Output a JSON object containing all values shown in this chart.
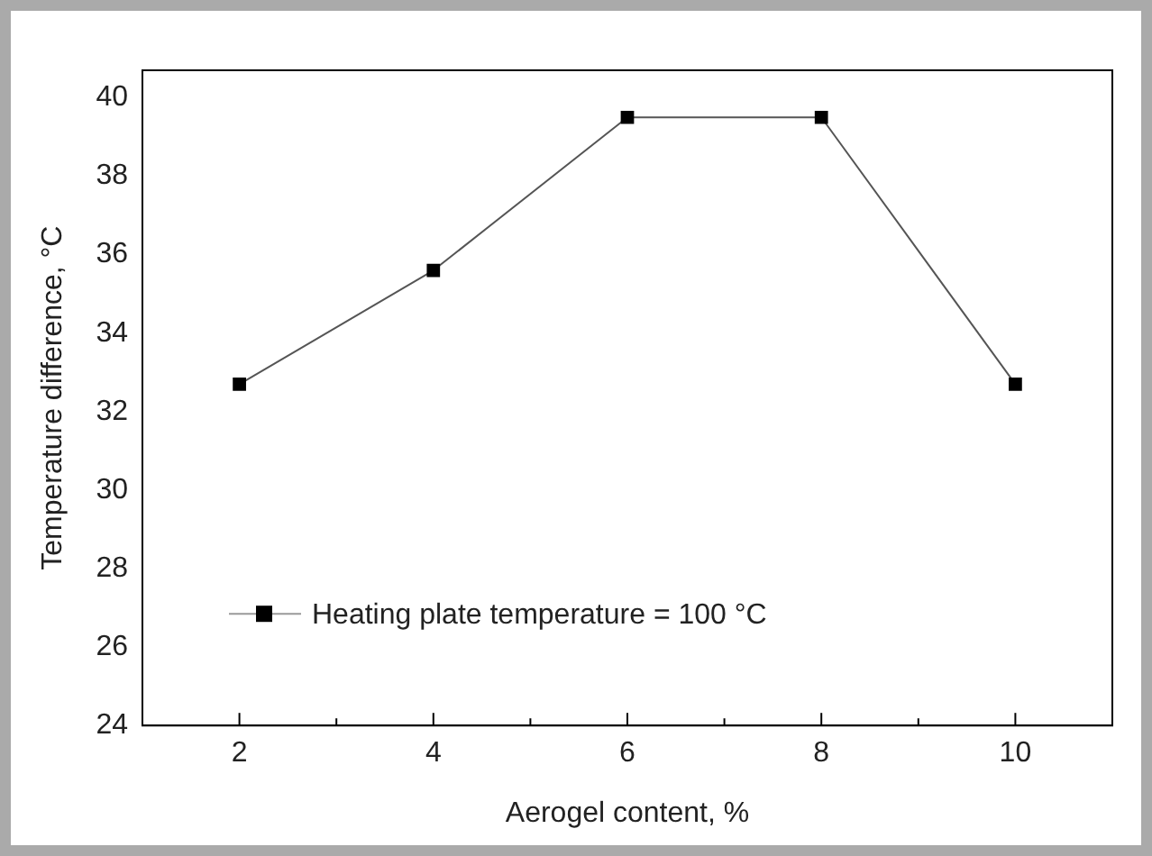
{
  "chart_data": {
    "type": "line",
    "xlabel": "Aerogel content, %",
    "ylabel": "Temperature difference, °C",
    "x": [
      2,
      4,
      6,
      8,
      10
    ],
    "series": [
      {
        "name": "Heating plate temperature = 100 °C",
        "color": "#000000",
        "values": [
          32.7,
          35.6,
          39.5,
          39.5,
          32.7
        ]
      }
    ],
    "xlim": [
      1,
      11
    ],
    "xticks": [
      2,
      {
        "value": 3,
        "label": null
      },
      4,
      {
        "value": 5,
        "label": null
      },
      6,
      {
        "value": 7,
        "label": null
      },
      8,
      {
        "value": 9,
        "label": null
      },
      10
    ],
    "ylim": [
      24,
      40.7
    ],
    "yticks": [
      24,
      26,
      28,
      30,
      32,
      34,
      36,
      38,
      40
    ],
    "grid": false,
    "legend": "bottom left",
    "marker": "square",
    "line_style": "solid"
  }
}
